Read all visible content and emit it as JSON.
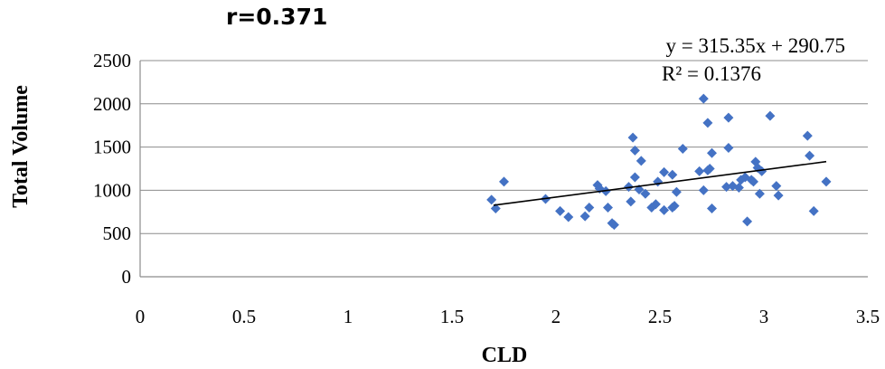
{
  "chart_data": {
    "type": "scatter",
    "title": "r=0.371",
    "xlabel": "CLD",
    "ylabel": "Total Volume",
    "xlim": [
      0,
      3.5
    ],
    "ylim": [
      0,
      2500
    ],
    "xticks": [
      0,
      0.5,
      1,
      1.5,
      2,
      2.5,
      3,
      3.5
    ],
    "xtick_labels": [
      "0",
      "0.5",
      "1",
      "1.5",
      "2",
      "2.5",
      "3",
      "3.5"
    ],
    "yticks": [
      0,
      500,
      1000,
      1500,
      2000,
      2500
    ],
    "ytick_labels": [
      "0",
      "500",
      "1000",
      "1500",
      "2000",
      "2500"
    ],
    "grid": "horizontal",
    "marker_color": "#4472c4",
    "trendline": {
      "slope": 315.35,
      "intercept": 290.75,
      "x_range": [
        1.7,
        3.3
      ],
      "color": "#000000",
      "equation": "y = 315.35x + 290.75",
      "r2_label": "R² = 0.1376"
    },
    "series": [
      {
        "points": [
          [
            1.69,
            890
          ],
          [
            1.71,
            790
          ],
          [
            1.75,
            1100
          ],
          [
            1.95,
            900
          ],
          [
            2.02,
            760
          ],
          [
            2.06,
            690
          ],
          [
            2.14,
            700
          ],
          [
            2.16,
            800
          ],
          [
            2.2,
            1060
          ],
          [
            2.21,
            1020
          ],
          [
            2.24,
            990
          ],
          [
            2.25,
            800
          ],
          [
            2.27,
            620
          ],
          [
            2.28,
            600
          ],
          [
            2.35,
            1040
          ],
          [
            2.36,
            870
          ],
          [
            2.37,
            1610
          ],
          [
            2.38,
            1460
          ],
          [
            2.38,
            1150
          ],
          [
            2.4,
            1010
          ],
          [
            2.41,
            1340
          ],
          [
            2.43,
            960
          ],
          [
            2.46,
            800
          ],
          [
            2.48,
            840
          ],
          [
            2.49,
            1100
          ],
          [
            2.52,
            1210
          ],
          [
            2.52,
            770
          ],
          [
            2.56,
            1180
          ],
          [
            2.56,
            800
          ],
          [
            2.57,
            820
          ],
          [
            2.58,
            980
          ],
          [
            2.61,
            1480
          ],
          [
            2.69,
            1220
          ],
          [
            2.71,
            2060
          ],
          [
            2.71,
            1000
          ],
          [
            2.73,
            1780
          ],
          [
            2.73,
            1230
          ],
          [
            2.74,
            1250
          ],
          [
            2.75,
            1430
          ],
          [
            2.75,
            790
          ],
          [
            2.82,
            1040
          ],
          [
            2.83,
            1840
          ],
          [
            2.83,
            1490
          ],
          [
            2.85,
            1050
          ],
          [
            2.88,
            1030
          ],
          [
            2.89,
            1120
          ],
          [
            2.91,
            1150
          ],
          [
            2.92,
            640
          ],
          [
            2.94,
            1120
          ],
          [
            2.95,
            1100
          ],
          [
            2.96,
            1330
          ],
          [
            2.97,
            1260
          ],
          [
            2.98,
            960
          ],
          [
            2.99,
            1220
          ],
          [
            3.03,
            1860
          ],
          [
            3.06,
            1050
          ],
          [
            3.07,
            940
          ],
          [
            3.21,
            1630
          ],
          [
            3.22,
            1400
          ],
          [
            3.24,
            760
          ],
          [
            3.3,
            1100
          ]
        ]
      }
    ]
  }
}
